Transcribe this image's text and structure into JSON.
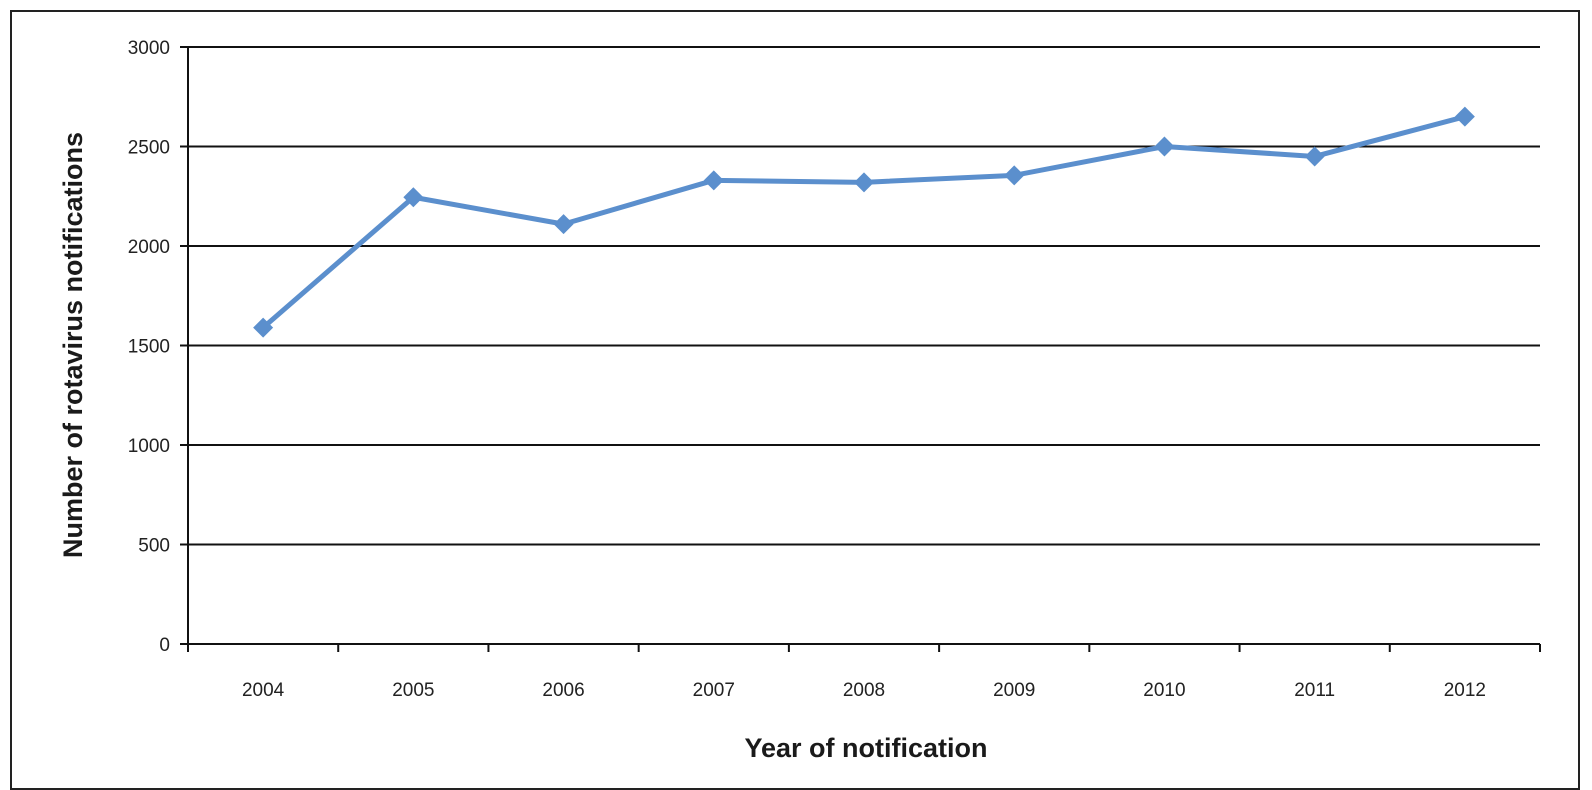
{
  "chart_data": {
    "type": "line",
    "title": "",
    "xlabel": "Year of notification",
    "ylabel": "Number of rotavirus notifications",
    "categories": [
      "2004",
      "2005",
      "2006",
      "2007",
      "2008",
      "2009",
      "2010",
      "2011",
      "2012"
    ],
    "series": [
      {
        "values": [
          1590,
          2245,
          2110,
          2330,
          2320,
          2355,
          2500,
          2450,
          2650
        ]
      }
    ],
    "ylim": [
      0,
      3000
    ],
    "yticks": [
      0,
      500,
      1000,
      1500,
      2000,
      2500,
      3000
    ],
    "grid": true,
    "legend": "none",
    "colors": {
      "line": "#5b8fcd",
      "grid": "#111111",
      "axis": "#111111"
    },
    "marker": "diamond"
  }
}
